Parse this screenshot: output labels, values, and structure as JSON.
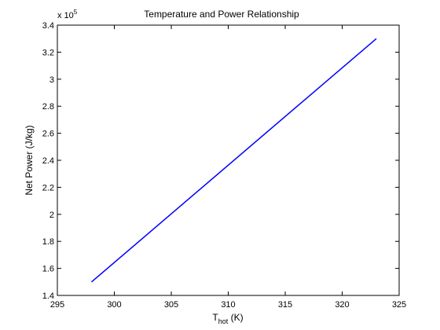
{
  "chart_data": {
    "type": "line",
    "title": "Temperature and Power Relationship",
    "xlabel_main": "T",
    "xlabel_sub": "hot",
    "xlabel_unit": " (K)",
    "ylabel": "Net Power (J/kg)",
    "y_exponent_prefix": "x 10",
    "y_exponent": "5",
    "xlim": [
      295,
      325
    ],
    "ylim": [
      1.4,
      3.4
    ],
    "x_ticks": [
      "295",
      "300",
      "305",
      "310",
      "315",
      "320",
      "325"
    ],
    "y_ticks": [
      "1.4",
      "1.6",
      "1.8",
      "2",
      "2.2",
      "2.4",
      "2.6",
      "2.8",
      "3",
      "3.2",
      "3.4"
    ],
    "grid": false,
    "series": [
      {
        "color": "#0000ff",
        "x": [
          298,
          323
        ],
        "y": [
          1.5,
          3.3
        ]
      }
    ]
  }
}
